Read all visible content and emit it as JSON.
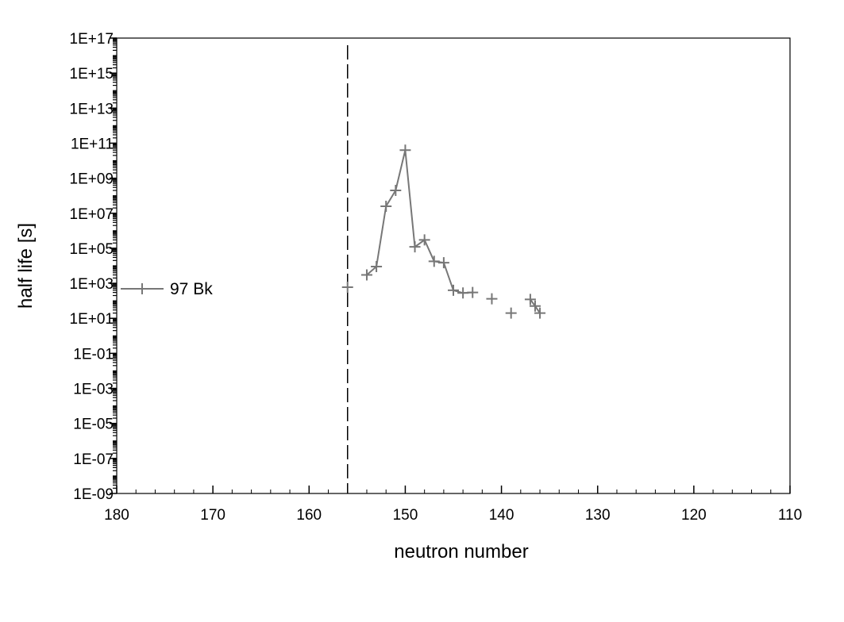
{
  "chart_data": {
    "type": "line",
    "xlabel": "neutron number",
    "ylabel": "half life [s]",
    "x_reversed": true,
    "xlim": [
      180,
      110
    ],
    "x_ticks": [
      180,
      170,
      160,
      150,
      140,
      130,
      120,
      110
    ],
    "y_scale": "log",
    "ylim": [
      1e-09,
      1e+17
    ],
    "y_ticks": [
      {
        "value": 1e-09,
        "label": "1E-09"
      },
      {
        "value": 1e-07,
        "label": "1E-07"
      },
      {
        "value": 1e-05,
        "label": "1E-05"
      },
      {
        "value": 0.001,
        "label": "1E-03"
      },
      {
        "value": 0.1,
        "label": "1E-01"
      },
      {
        "value": 10.0,
        "label": "1E+01"
      },
      {
        "value": 1000.0,
        "label": "1E+03"
      },
      {
        "value": 100000.0,
        "label": "1E+05"
      },
      {
        "value": 10000000.0,
        "label": "1E+07"
      },
      {
        "value": 1000000000.0,
        "label": "1E+09"
      },
      {
        "value": 100000000000.0,
        "label": "1E+11"
      },
      {
        "value": 10000000000000.0,
        "label": "1E+13"
      },
      {
        "value": 1000000000000000.0,
        "label": "1E+15"
      },
      {
        "value": 1e+17,
        "label": "1E+17"
      }
    ],
    "reference_line": {
      "x": 156,
      "style": "dashed"
    },
    "legend": {
      "placement": "left-middle"
    },
    "series": [
      {
        "name": "97 Bk",
        "color": "#777777",
        "marker": "plus",
        "points": [
          {
            "x": 156,
            "y": 600
          },
          {
            "x": 154,
            "y": 3000
          },
          {
            "x": 153,
            "y": 9000
          },
          {
            "x": 152,
            "y": 25000000.0
          },
          {
            "x": 151,
            "y": 200000000.0
          },
          {
            "x": 150,
            "y": 40000000000.0
          },
          {
            "x": 149,
            "y": 120000.0
          },
          {
            "x": 148,
            "y": 300000.0
          },
          {
            "x": 147,
            "y": 18000.0
          },
          {
            "x": 146,
            "y": 15000.0
          },
          {
            "x": 145,
            "y": 400
          },
          {
            "x": 144,
            "y": 280
          },
          {
            "x": 143,
            "y": 300
          },
          {
            "x": 141,
            "y": 130
          },
          {
            "x": 139,
            "y": 20
          },
          {
            "x": 137,
            "y": 120
          },
          {
            "x": 136.5,
            "y": 50
          },
          {
            "x": 136,
            "y": 20
          }
        ],
        "segments": [
          [
            1,
            2,
            3,
            4,
            5,
            6,
            7,
            8,
            9,
            10,
            11,
            12
          ],
          [
            15,
            16,
            17
          ]
        ]
      }
    ]
  }
}
